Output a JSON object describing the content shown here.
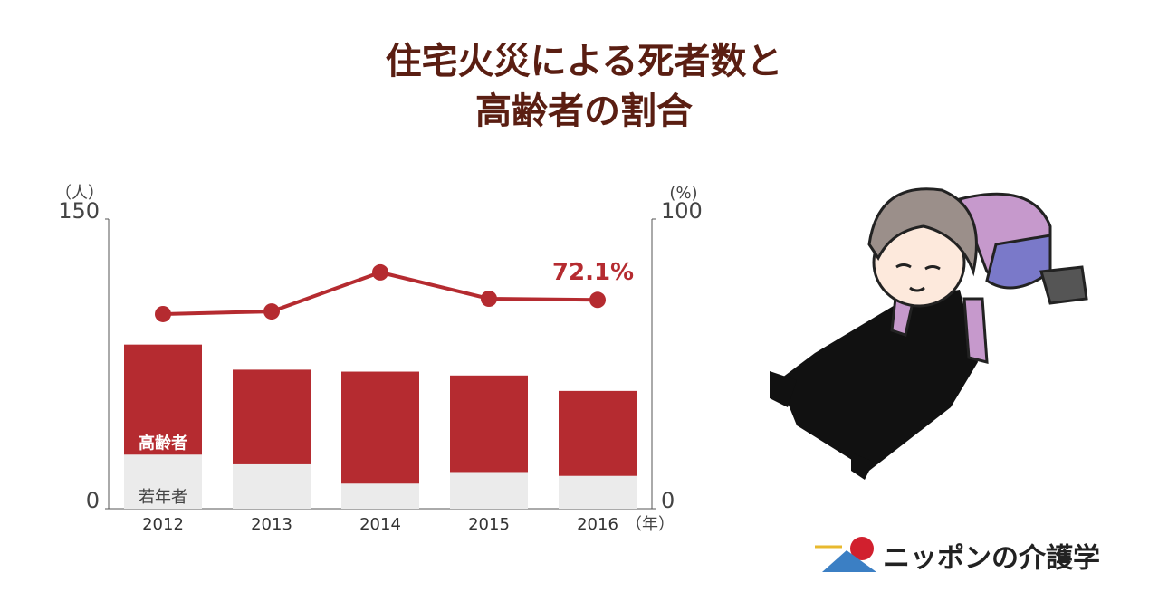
{
  "title_lines": [
    "住宅火災による死者数と",
    "高齢者の割合"
  ],
  "chart_data": {
    "type": "bar",
    "stacked": true,
    "y_label": "（人）",
    "y2_label": "(%)",
    "x_label": "（年）",
    "categories": [
      "2012",
      "2013",
      "2014",
      "2015",
      "2016"
    ],
    "series": [
      {
        "name": "若年者",
        "color": "#ebebeb",
        "label_color": "#444444",
        "values": [
          28,
          23,
          13,
          19,
          17
        ]
      },
      {
        "name": "高齢者",
        "color": "#b52b30",
        "label_color": "#ffffff",
        "values": [
          57,
          49,
          58,
          50,
          44
        ]
      },
      {
        "type": "line",
        "axis": "y2",
        "color": "#b52b30",
        "values": [
          67.2,
          68.1,
          81.6,
          72.5,
          72.1
        ],
        "value_labels": [
          null,
          null,
          null,
          null,
          "72.1%"
        ]
      }
    ],
    "ylim": [
      0,
      150
    ],
    "yticks": [
      0,
      150
    ],
    "y2lim": [
      0,
      100
    ],
    "y2ticks": [
      0,
      100
    ]
  },
  "logo": "ニッポンの介護学"
}
